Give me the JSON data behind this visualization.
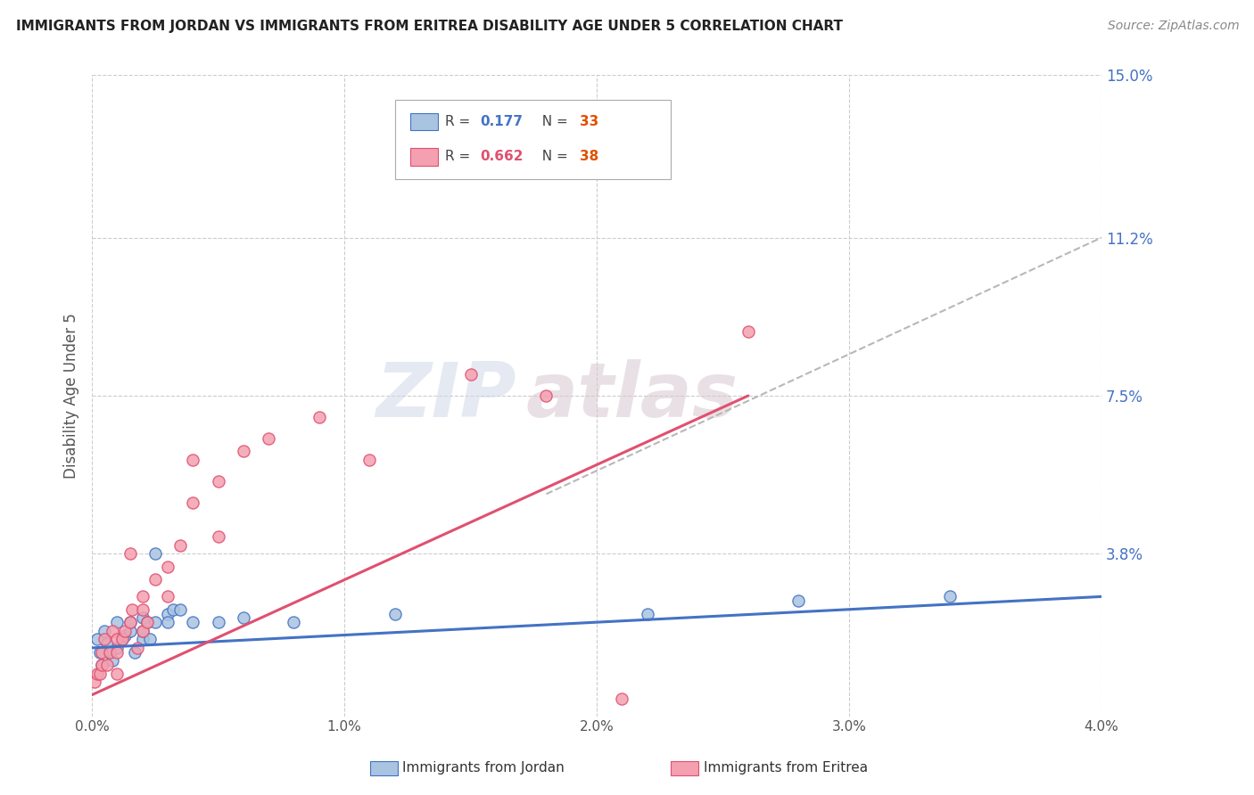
{
  "title": "IMMIGRANTS FROM JORDAN VS IMMIGRANTS FROM ERITREA DISABILITY AGE UNDER 5 CORRELATION CHART",
  "source": "Source: ZipAtlas.com",
  "xlabel_jordan": "Immigrants from Jordan",
  "xlabel_eritrea": "Immigrants from Eritrea",
  "ylabel": "Disability Age Under 5",
  "xlim": [
    0.0,
    0.04
  ],
  "ylim": [
    0.0,
    0.15
  ],
  "xticks": [
    0.0,
    0.01,
    0.02,
    0.03,
    0.04
  ],
  "xtick_labels": [
    "0.0%",
    "1.0%",
    "2.0%",
    "3.0%",
    "4.0%"
  ],
  "yticks_right": [
    0.038,
    0.075,
    0.112,
    0.15
  ],
  "ytick_labels_right": [
    "3.8%",
    "7.5%",
    "11.2%",
    "15.0%"
  ],
  "legend_jordan_r": "0.177",
  "legend_jordan_n": "33",
  "legend_eritrea_r": "0.662",
  "legend_eritrea_n": "38",
  "color_jordan": "#a8c4e0",
  "color_eritrea": "#f4a0b0",
  "color_jordan_line": "#4472c4",
  "color_eritrea_line": "#e05070",
  "color_dashed": "#b8b8b8",
  "color_r_jordan": "#4472c4",
  "color_n_jordan": "#e05000",
  "color_r_eritrea": "#e05070",
  "color_n_eritrea": "#e05000",
  "watermark_zip": "ZIP",
  "watermark_atlas": "atlas",
  "jordan_x": [
    0.0002,
    0.0003,
    0.0004,
    0.0005,
    0.0006,
    0.0007,
    0.0008,
    0.001,
    0.001,
    0.0012,
    0.0013,
    0.0015,
    0.0015,
    0.0017,
    0.002,
    0.002,
    0.002,
    0.0022,
    0.0023,
    0.0025,
    0.0025,
    0.003,
    0.003,
    0.0032,
    0.0035,
    0.004,
    0.005,
    0.006,
    0.008,
    0.012,
    0.022,
    0.028,
    0.034
  ],
  "jordan_y": [
    0.018,
    0.015,
    0.012,
    0.02,
    0.017,
    0.015,
    0.013,
    0.016,
    0.022,
    0.018,
    0.019,
    0.02,
    0.022,
    0.015,
    0.018,
    0.02,
    0.023,
    0.022,
    0.018,
    0.022,
    0.038,
    0.024,
    0.022,
    0.025,
    0.025,
    0.022,
    0.022,
    0.023,
    0.022,
    0.024,
    0.024,
    0.027,
    0.028
  ],
  "eritrea_x": [
    0.0001,
    0.0002,
    0.0003,
    0.0004,
    0.0004,
    0.0005,
    0.0006,
    0.0007,
    0.0008,
    0.001,
    0.001,
    0.001,
    0.0012,
    0.0013,
    0.0015,
    0.0015,
    0.0016,
    0.0018,
    0.002,
    0.002,
    0.002,
    0.0022,
    0.0025,
    0.003,
    0.003,
    0.0035,
    0.004,
    0.004,
    0.005,
    0.005,
    0.006,
    0.007,
    0.009,
    0.011,
    0.015,
    0.018,
    0.021,
    0.026
  ],
  "eritrea_y": [
    0.008,
    0.01,
    0.01,
    0.012,
    0.015,
    0.018,
    0.012,
    0.015,
    0.02,
    0.015,
    0.018,
    0.01,
    0.018,
    0.02,
    0.022,
    0.038,
    0.025,
    0.016,
    0.02,
    0.025,
    0.028,
    0.022,
    0.032,
    0.028,
    0.035,
    0.04,
    0.05,
    0.06,
    0.042,
    0.055,
    0.062,
    0.065,
    0.07,
    0.06,
    0.08,
    0.075,
    0.004,
    0.09
  ],
  "jordan_line_x": [
    0.0,
    0.04
  ],
  "jordan_line_y": [
    0.016,
    0.028
  ],
  "eritrea_line_x": [
    0.0,
    0.026
  ],
  "eritrea_line_y": [
    0.005,
    0.075
  ],
  "dashed_line_x": [
    0.018,
    0.04
  ],
  "dashed_line_y": [
    0.052,
    0.112
  ]
}
